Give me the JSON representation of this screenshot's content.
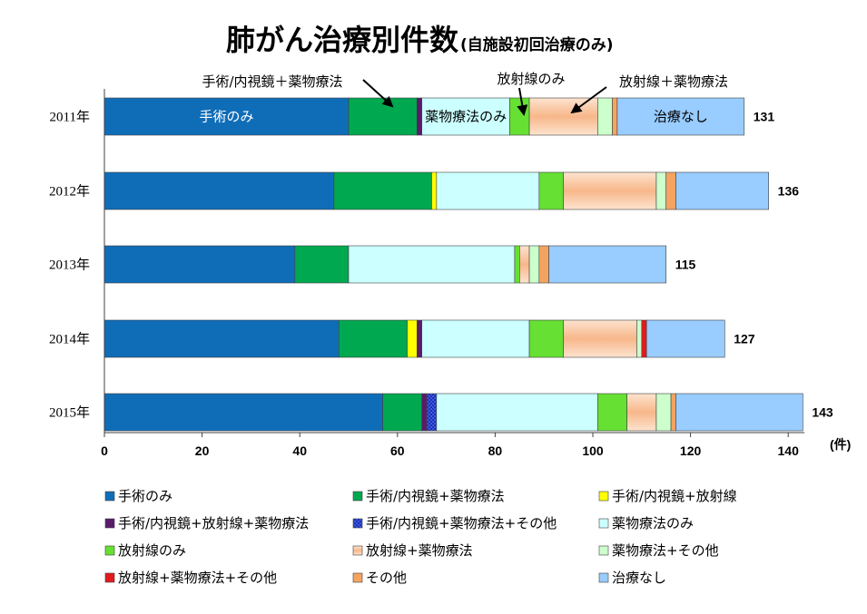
{
  "chart_data": {
    "type": "bar",
    "orientation": "horizontal",
    "stacked": true,
    "title": "肺がん治療別件数",
    "subtitle": "(自施設初回治療のみ)",
    "xlabel": "(件)",
    "ylabel": "",
    "xlim": [
      0,
      140
    ],
    "xticks": [
      0,
      20,
      40,
      60,
      80,
      100,
      120,
      140
    ],
    "categories": [
      "2011年",
      "2012年",
      "2013年",
      "2014年",
      "2015年"
    ],
    "totals": [
      131,
      136,
      115,
      127,
      143
    ],
    "legend_position": "bottom",
    "grid": false,
    "series": [
      {
        "name": "手術のみ",
        "color": "#0F6DB8",
        "values": [
          50,
          47,
          39,
          48,
          57
        ]
      },
      {
        "name": "手術/内視鏡+薬物療法",
        "color": "#00A84F",
        "values": [
          14,
          20,
          11,
          14,
          8
        ]
      },
      {
        "name": "手術/内視鏡+放射線",
        "color": "#FFFF00",
        "values": [
          0,
          1,
          0,
          2,
          0
        ]
      },
      {
        "name": "手術/内視鏡+放射線+薬物療法",
        "color": "#5B1A6A",
        "values": [
          1,
          0,
          0,
          1,
          1
        ]
      },
      {
        "name": "手術/内視鏡+薬物療法+その他",
        "color": "#1F2FB0",
        "values": [
          0,
          0,
          0,
          0,
          2
        ]
      },
      {
        "name": "薬物療法のみ",
        "color": "#CCFFFF",
        "values": [
          18,
          21,
          34,
          22,
          33
        ]
      },
      {
        "name": "放射線のみ",
        "color": "#66E033",
        "values": [
          4,
          5,
          1,
          7,
          6
        ]
      },
      {
        "name": "放射線+薬物療法",
        "color": "#FBD2B4",
        "values": [
          14,
          19,
          2,
          15,
          6
        ]
      },
      {
        "name": "薬物療法+その他",
        "color": "#CCFFCC",
        "values": [
          3,
          2,
          2,
          1,
          3
        ]
      },
      {
        "name": "放射線+薬物療法+その他",
        "color": "#E31A1C",
        "values": [
          0,
          0,
          0,
          1,
          0
        ]
      },
      {
        "name": "その他",
        "color": "#F4A460",
        "values": [
          1,
          2,
          2,
          0,
          1
        ]
      },
      {
        "name": "治療なし",
        "color": "#99CCFF",
        "values": [
          26,
          19,
          24,
          16,
          26
        ]
      }
    ],
    "in_bar_labels": [
      {
        "text": "手術のみ",
        "series": 0,
        "category": 0,
        "color": "#FFFFFF"
      },
      {
        "text": "薬物療法のみ",
        "series": 5,
        "category": 0,
        "color": "#000000"
      },
      {
        "text": "治療なし",
        "series": 11,
        "category": 0,
        "color": "#000000"
      }
    ],
    "annotations": [
      {
        "text": "手術/内視鏡＋薬物療法",
        "points_to_series": 1
      },
      {
        "text": "放射線のみ",
        "points_to_series": 6
      },
      {
        "text": "放射線＋薬物療法",
        "points_to_series": 7
      }
    ]
  }
}
